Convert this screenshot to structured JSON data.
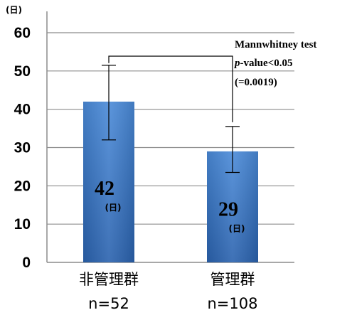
{
  "chart_data": {
    "type": "bar",
    "title": "",
    "y_unit": "(日)",
    "ylim": [
      0,
      60
    ],
    "yticks": [
      0,
      10,
      20,
      30,
      40,
      50,
      60
    ],
    "grid": true,
    "categories": [
      "非管理群",
      "管理群"
    ],
    "sample_sizes": [
      "n=52",
      "n=108"
    ],
    "values": [
      42,
      29
    ],
    "error_upper": [
      51.5,
      35.5
    ],
    "error_lower": [
      32,
      23.5
    ],
    "data_labels": [
      "42",
      "29"
    ],
    "data_label_unit": "(日)",
    "bar_color": "#3a78c4",
    "significance": {
      "line1": "Mannwhitney test",
      "line2_italic": "p",
      "line2_rest": "-value<0.05",
      "line3": "(=0.0019)"
    }
  }
}
